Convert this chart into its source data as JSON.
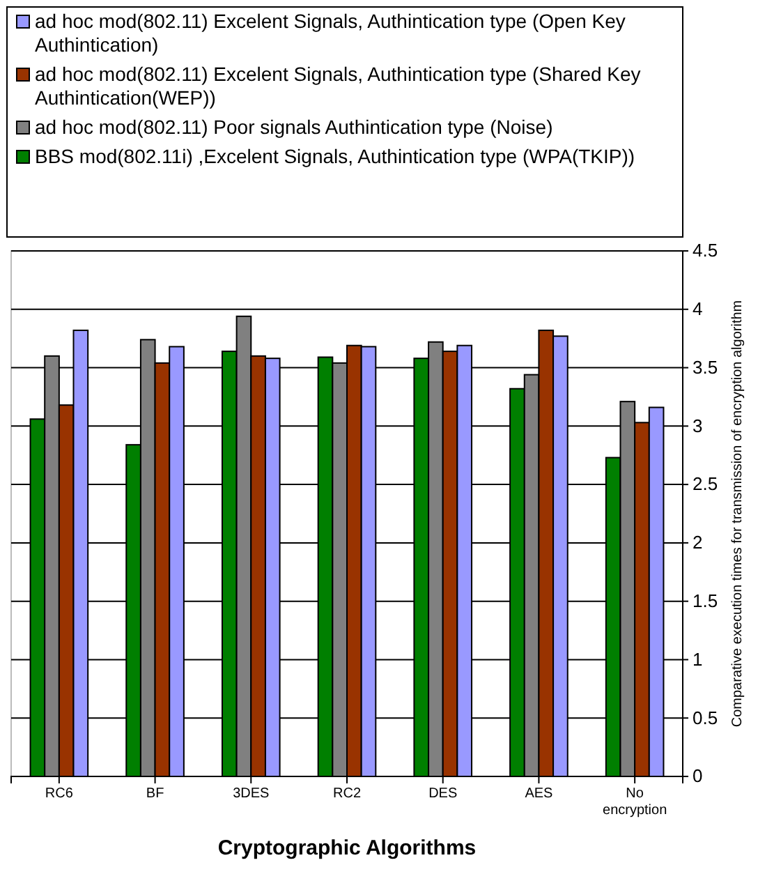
{
  "chart_data": {
    "type": "bar",
    "xlabel": "Cryptographic Algorithms",
    "ylabel": "Comparative execution times for transmission of encryption algorithm",
    "categories": [
      "RC6",
      "BF",
      "3DES",
      "RC2",
      "DES",
      "AES",
      "No encryption"
    ],
    "series": [
      {
        "name": "BBS mod(802.11i) ,Excelent Signals, Authintication type (WPA(TKIP))",
        "color": "#007f00",
        "values": [
          3.06,
          2.84,
          3.64,
          3.59,
          3.58,
          3.32,
          2.73
        ]
      },
      {
        "name": "ad hoc mod(802.11) Poor signals Authintication type (Noise)",
        "color": "#808080",
        "values": [
          3.6,
          3.74,
          3.94,
          3.54,
          3.72,
          3.44,
          3.21
        ]
      },
      {
        "name": "ad hoc mod(802.11) Excelent Signals, Authintication type (Shared Key Authintication(WEP))",
        "color": "#993300",
        "values": [
          3.18,
          3.54,
          3.6,
          3.69,
          3.64,
          3.82,
          3.03
        ]
      },
      {
        "name": "ad hoc mod(802.11) Excelent Signals, Authintication type (Open Key Authintication)",
        "color": "#9999ff",
        "values": [
          3.82,
          3.68,
          3.58,
          3.68,
          3.69,
          3.77,
          3.16
        ]
      }
    ],
    "ylim": [
      0,
      4.5
    ],
    "yticks": [
      0,
      0.5,
      1,
      1.5,
      2,
      2.5,
      3,
      3.5,
      4,
      4.5
    ],
    "grid": "y",
    "legend": "top"
  }
}
